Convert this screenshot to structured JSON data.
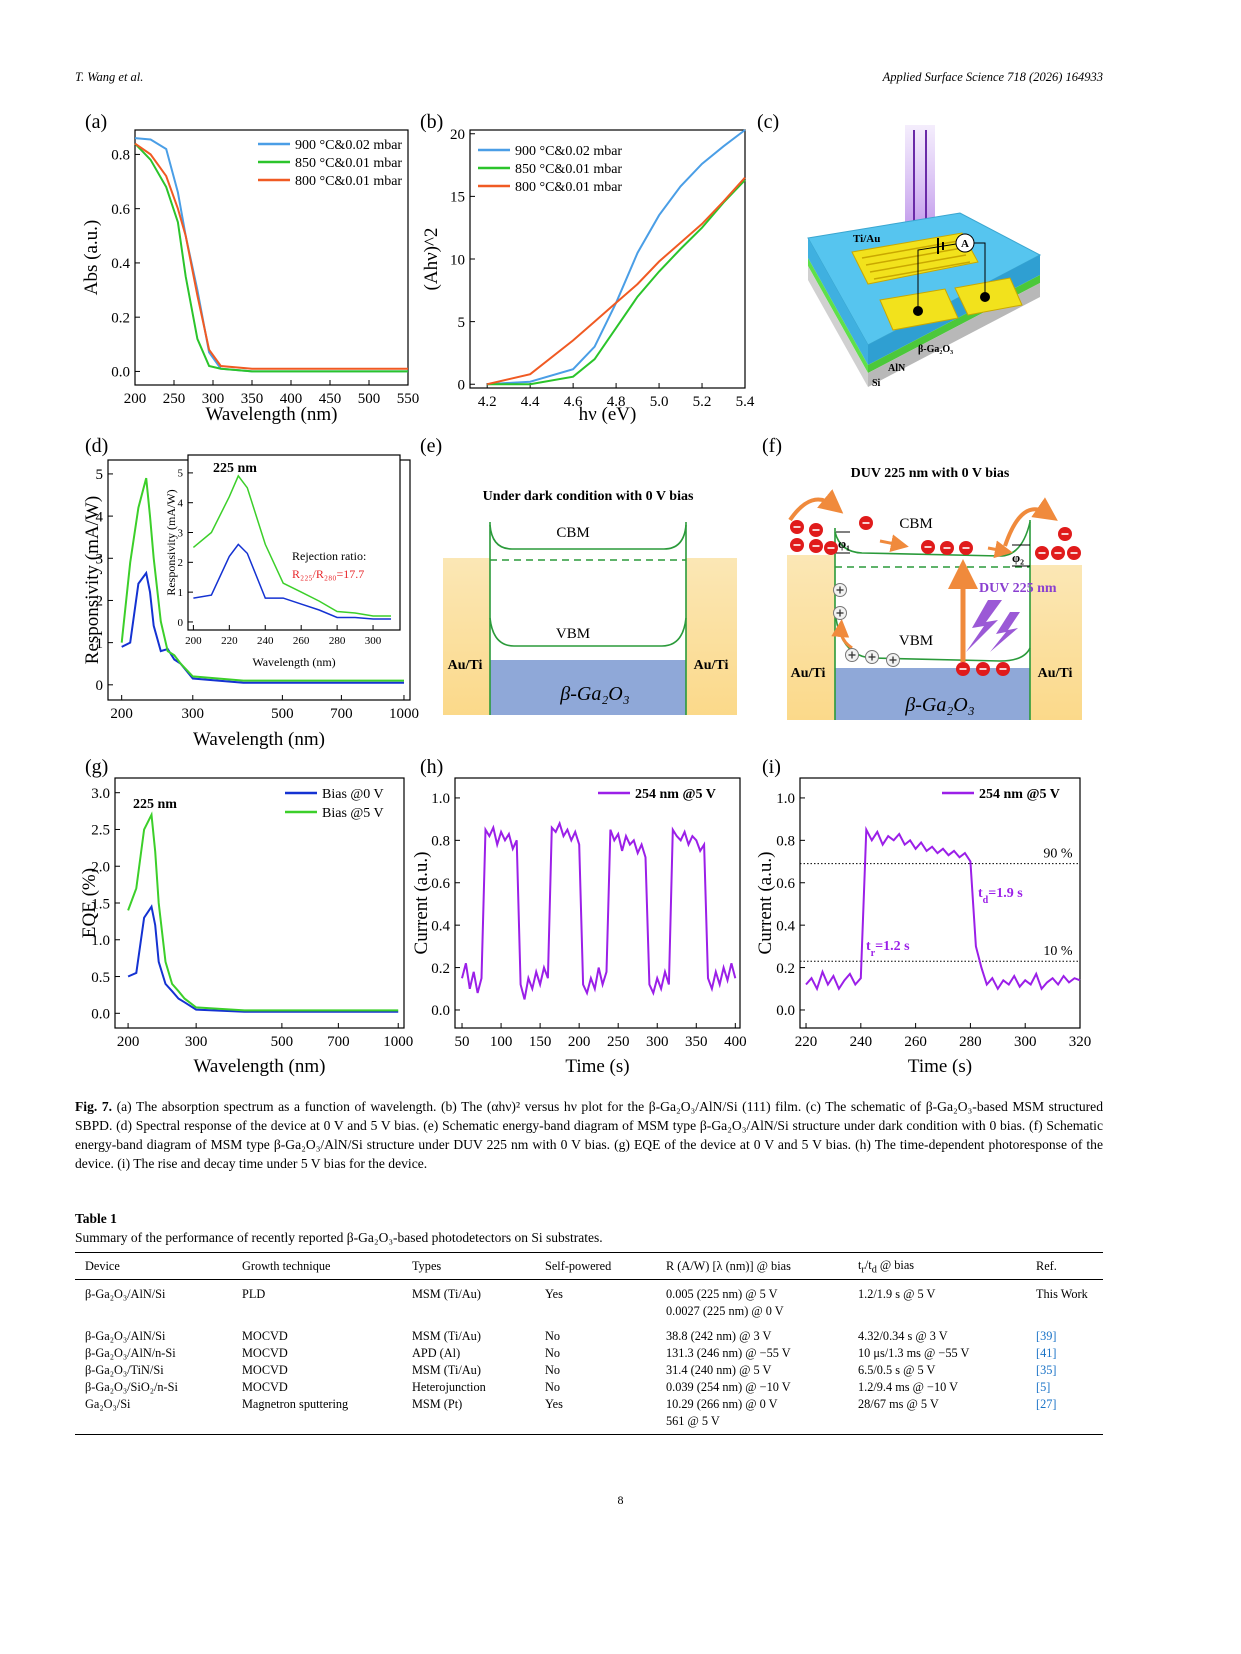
{
  "header": {
    "author": "T. Wang et al.",
    "journal": "Applied Surface Science 718 (2026) 164933"
  },
  "chart_data": [
    {
      "type": "line",
      "label": "(a)",
      "xlabel": "Wavelength (nm)",
      "ylabel": "Abs (a.u.)",
      "x": [
        200,
        220,
        240,
        255,
        265,
        280,
        295,
        310,
        350,
        550
      ],
      "series": [
        {
          "name": "900 °C&0.02 mbar",
          "color": "#4a9ee6",
          "values": [
            0.86,
            0.855,
            0.82,
            0.66,
            0.5,
            0.3,
            0.07,
            0.01,
            0.0,
            0.0
          ]
        },
        {
          "name": "850 °C&0.01 mbar",
          "color": "#2bc42b",
          "values": [
            0.84,
            0.78,
            0.68,
            0.55,
            0.35,
            0.12,
            0.02,
            0.01,
            0.0,
            0.0
          ]
        },
        {
          "name": "800 °C&0.01 mbar",
          "color": "#f05a23",
          "values": [
            0.84,
            0.8,
            0.72,
            0.6,
            0.5,
            0.28,
            0.08,
            0.02,
            0.01,
            0.01
          ]
        }
      ],
      "xlim": [
        200,
        550
      ],
      "ylim": [
        -0.05,
        0.89
      ],
      "xticks": [
        200,
        250,
        300,
        350,
        400,
        450,
        500,
        550
      ],
      "yticks": [
        {
          "value": 0,
          "label": "0.0"
        },
        0.2,
        0.4,
        0.6,
        0.8
      ]
    },
    {
      "type": "line",
      "label": "(b)",
      "xlabel": "hν (eV)",
      "ylabel": "(Ahν)^2",
      "x": [
        4.2,
        4.4,
        4.6,
        4.7,
        4.8,
        4.9,
        5.0,
        5.1,
        5.2,
        5.3,
        5.4
      ],
      "series": [
        {
          "name": "900 °C&0.02 mbar",
          "color": "#4a9ee6",
          "values": [
            0,
            0.2,
            1.2,
            3,
            6.5,
            10.5,
            13.5,
            15.8,
            17.6,
            19,
            20.3
          ]
        },
        {
          "name": "850 °C&0.01 mbar",
          "color": "#2bc42b",
          "values": [
            0,
            0,
            0.6,
            2,
            4.5,
            7,
            9,
            10.8,
            12.5,
            14.5,
            16.3
          ]
        },
        {
          "name": "800 °C&0.01 mbar",
          "color": "#f05a23",
          "values": [
            0,
            0.8,
            3.5,
            5,
            6.5,
            8,
            9.8,
            11.3,
            12.8,
            14.6,
            16.5
          ]
        }
      ],
      "xlim": [
        4.12,
        5.4
      ],
      "ylim": [
        -0.3,
        20.3
      ],
      "xticks": [
        4.2,
        4.4,
        4.6,
        4.8,
        {
          "value": 5,
          "label": "5.0"
        },
        5.2,
        5.4
      ],
      "yticks": [
        0,
        5,
        10,
        15,
        20
      ]
    },
    {
      "type": "line",
      "label": "(d)",
      "xlabel": "Wavelength (nm)",
      "ylabel": "Responsivity (mA/W)",
      "xscale": "log",
      "x": [
        200,
        210,
        220,
        230,
        235,
        240,
        250,
        260,
        270,
        280,
        300,
        400,
        1000
      ],
      "series": [
        {
          "name": "Bias @0 V",
          "color": "#1432d2",
          "values": [
            0.9,
            1,
            2.4,
            2.65,
            2.2,
            1.4,
            0.8,
            0.85,
            0.6,
            0.5,
            0.15,
            0.05,
            0.05
          ]
        },
        {
          "name": "Bias @5 V",
          "color": "#3ccf2a",
          "values": [
            1,
            2.9,
            4.2,
            4.9,
            4,
            3,
            1.5,
            0.8,
            0.7,
            0.5,
            0.2,
            0.1,
            0.1
          ]
        }
      ],
      "xlim": [
        185,
        1035
      ],
      "ylim": [
        -0.36,
        5.33
      ],
      "xticks": [
        200,
        300,
        500,
        700,
        1000
      ],
      "yticks": [
        0,
        1,
        2,
        3,
        4,
        5
      ]
    },
    {
      "type": "line",
      "xlabel": "Wavelength (nm)",
      "ylabel": "Responsivity (mA/W)",
      "x": [
        200,
        210,
        220,
        225,
        230,
        240,
        250,
        260,
        270,
        280,
        290,
        300,
        310
      ],
      "series": [
        {
          "color": "#1432d2",
          "values": [
            0.8,
            0.9,
            2.2,
            2.6,
            2.3,
            0.8,
            0.8,
            0.6,
            0.4,
            0.15,
            0.15,
            0.1,
            0.1
          ]
        },
        {
          "color": "#3ccf2a",
          "values": [
            2.5,
            3,
            4.2,
            4.9,
            4.5,
            2.6,
            1.3,
            1.0,
            0.7,
            0.35,
            0.3,
            0.2,
            0.2
          ]
        }
      ],
      "xlim": [
        197,
        315
      ],
      "ylim": [
        -0.27,
        5.6
      ],
      "xticks": [
        200,
        220,
        240,
        260,
        280,
        300
      ],
      "yticks": [
        0,
        1,
        2,
        3,
        4,
        5
      ],
      "annotations": [
        {
          "text": "225 nm",
          "color": "#000000"
        },
        {
          "text": "Rejection ratio:",
          "color": "#000000"
        },
        {
          "text": "R₂₂₅/R₂₈₀=17.7",
          "color": "#e8262a"
        }
      ]
    },
    {
      "type": "line",
      "label": "(g)",
      "xlabel": "Wavelength (nm)",
      "ylabel": "EQE (%)",
      "xscale": "log",
      "x": [
        200,
        210,
        220,
        230,
        235,
        240,
        250,
        260,
        270,
        280,
        300,
        400,
        1000
      ],
      "series": [
        {
          "name": "Bias @0 V",
          "color": "#1432d2",
          "values": [
            0.5,
            0.55,
            1.3,
            1.45,
            1.2,
            0.7,
            0.4,
            0.3,
            0.2,
            0.15,
            0.05,
            0.02,
            0.02
          ]
        },
        {
          "name": "Bias @5 V",
          "color": "#3ccf2a",
          "values": [
            1.4,
            1.7,
            2.5,
            2.7,
            2.2,
            1.5,
            0.7,
            0.4,
            0.3,
            0.2,
            0.08,
            0.04,
            0.04
          ]
        }
      ],
      "xlim": [
        185,
        1035
      ],
      "ylim": [
        -0.2,
        3.2
      ],
      "xticks": [
        200,
        300,
        500,
        700,
        1000
      ],
      "yticks": [
        {
          "value": 0,
          "label": "0.0"
        },
        0.5,
        {
          "value": 1,
          "label": "1.0"
        },
        1.5,
        {
          "value": 2,
          "label": "2.0"
        },
        2.5,
        {
          "value": 3,
          "label": "3.0"
        }
      ],
      "annotations": [
        {
          "text": "225 nm",
          "color": "#000000"
        }
      ]
    },
    {
      "type": "line",
      "label": "(h)",
      "xlabel": "Time (s)",
      "ylabel": "Current (a.u.)",
      "x": [
        50,
        55,
        60,
        65,
        70,
        75,
        80,
        85,
        90,
        95,
        100,
        105,
        110,
        115,
        120,
        125,
        130,
        135,
        140,
        145,
        150,
        155,
        160,
        165,
        170,
        175,
        180,
        185,
        190,
        195,
        200,
        205,
        210,
        215,
        220,
        225,
        230,
        235,
        240,
        245,
        250,
        255,
        260,
        265,
        270,
        275,
        280,
        285,
        290,
        295,
        300,
        305,
        310,
        315,
        320,
        325,
        330,
        335,
        340,
        345,
        350,
        355,
        360,
        365,
        370,
        375,
        380,
        385,
        390,
        395,
        400
      ],
      "series": [
        {
          "name": "254 nm  @5 V",
          "color": "#9b1fe8",
          "values": [
            0.15,
            0.22,
            0.1,
            0.18,
            0.08,
            0.15,
            0.85,
            0.82,
            0.86,
            0.78,
            0.84,
            0.8,
            0.83,
            0.76,
            0.8,
            0.12,
            0.05,
            0.15,
            0.1,
            0.18,
            0.12,
            0.2,
            0.15,
            0.86,
            0.84,
            0.88,
            0.82,
            0.85,
            0.8,
            0.84,
            0.78,
            0.12,
            0.08,
            0.15,
            0.1,
            0.2,
            0.12,
            0.18,
            0.85,
            0.8,
            0.83,
            0.75,
            0.82,
            0.78,
            0.8,
            0.74,
            0.78,
            0.72,
            0.12,
            0.08,
            0.15,
            0.1,
            0.18,
            0.12,
            0.85,
            0.82,
            0.8,
            0.84,
            0.78,
            0.82,
            0.8,
            0.75,
            0.78,
            0.15,
            0.1,
            0.18,
            0.12,
            0.2,
            0.14,
            0.22,
            0.15
          ]
        }
      ],
      "xlim": [
        41,
        406
      ],
      "ylim": [
        -0.085,
        1.094
      ],
      "xticks": [
        50,
        100,
        150,
        200,
        250,
        300,
        350,
        400
      ],
      "yticks": [
        {
          "value": 0,
          "label": "0.0"
        },
        0.2,
        0.4,
        0.6,
        0.8,
        {
          "value": 1,
          "label": "1.0"
        }
      ]
    },
    {
      "type": "line",
      "label": "(i)",
      "xlabel": "Time (s)",
      "ylabel": "Current (a.u.)",
      "x": [
        220,
        222,
        224,
        226,
        228,
        230,
        232,
        234,
        236,
        238,
        240,
        242,
        244,
        246,
        248,
        250,
        252,
        254,
        256,
        258,
        260,
        262,
        264,
        266,
        268,
        270,
        272,
        274,
        276,
        278,
        280,
        282,
        284,
        286,
        288,
        290,
        292,
        294,
        296,
        298,
        300,
        302,
        304,
        306,
        308,
        310,
        312,
        314,
        316,
        318,
        320
      ],
      "series": [
        {
          "name": "254 nm  @5 V",
          "color": "#9b1fe8",
          "values": [
            0.12,
            0.15,
            0.1,
            0.18,
            0.12,
            0.16,
            0.1,
            0.14,
            0.17,
            0.12,
            0.15,
            0.85,
            0.8,
            0.84,
            0.78,
            0.82,
            0.8,
            0.83,
            0.78,
            0.8,
            0.76,
            0.79,
            0.75,
            0.77,
            0.74,
            0.76,
            0.73,
            0.75,
            0.72,
            0.74,
            0.7,
            0.3,
            0.2,
            0.12,
            0.15,
            0.1,
            0.14,
            0.12,
            0.16,
            0.11,
            0.14,
            0.12,
            0.17,
            0.1,
            0.13,
            0.15,
            0.12,
            0.16,
            0.13,
            0.15,
            0.14
          ]
        }
      ],
      "xlim": [
        217.8,
        320
      ],
      "ylim": [
        -0.085,
        1.094
      ],
      "xticks": [
        220,
        240,
        260,
        280,
        300,
        320
      ],
      "yticks": [
        {
          "value": 0,
          "label": "0.0"
        },
        0.2,
        0.4,
        0.6,
        0.8,
        {
          "value": 1,
          "label": "1.0"
        }
      ],
      "hlines": [
        {
          "value": 0.69,
          "label": "90 %"
        },
        {
          "value": 0.23,
          "label": "10 %"
        }
      ],
      "annotations": [
        {
          "text": [
            "t",
            {
              "sub": "d"
            },
            "=1.9 s"
          ],
          "color": "#9b1fe8"
        },
        {
          "text": [
            "t",
            {
              "sub": "r"
            },
            "=1.2 s"
          ],
          "color": "#9b1fe8"
        }
      ]
    }
  ],
  "diagrams": {
    "c": {
      "label": "(c)",
      "electrode": "Ti/Au",
      "meter": "A",
      "film": "β-Ga₂O₃",
      "buffer": "AlN",
      "substrate": "Si"
    },
    "e": {
      "label": "(e)",
      "title": "Under dark condition with 0 V bias",
      "cbm": "CBM",
      "vbm": "VBM",
      "left_contact": "Au/Ti",
      "right_contact": "Au/Ti",
      "semiconductor": "β-Ga₂O₃"
    },
    "f": {
      "label": "(f)",
      "title": "DUV 225 nm with 0 V bias",
      "cbm": "CBM",
      "phi1": "φ₁",
      "phi2": "φ₂",
      "light": "DUV 225 nm",
      "vbm": "VBM",
      "left_contact": "Au/Ti",
      "right_contact": "Au/Ti",
      "semiconductor": "β-Ga₂O₃"
    }
  },
  "figure_caption": {
    "label": "Fig. 7.",
    "text": "(a) The absorption spectrum as a function of wavelength. (b) The (αhν)² versus hν plot for the β-Ga₂O₃/AlN/Si (111) film. (c) The schematic of β-Ga₂O₃-based MSM structured SBPD. (d) Spectral response of the device at 0 V and 5 V bias. (e) Schematic energy-band diagram of MSM type β-Ga₂O₃/AlN/Si structure under dark condition with 0 bias. (f) Schematic energy-band diagram of MSM type β-Ga₂O₃/AlN/Si structure under DUV 225 nm with 0 V bias. (g) EQE of the device at 0 V and 5 V bias. (h) The time-dependent photoresponse of the device. (i) The rise and decay time under 5 V bias for the device."
  },
  "table": {
    "title": "Table 1",
    "caption": "Summary of the performance of recently reported β-Ga₂O₃-based photodetectors on Si substrates.",
    "columns": [
      "Device",
      "Growth technique",
      "Types",
      "Self-powered",
      "R (A/W) [λ (nm)] @ bias",
      [
        "t",
        {
          "sub": "r"
        },
        "/t",
        {
          "sub": "d"
        },
        " @ bias"
      ],
      "Ref."
    ],
    "rows": [
      [
        "β-Ga₂O₃/AlN/Si",
        "PLD",
        "MSM (Ti/Au)",
        "Yes",
        "0.005 (225 nm) @ 5 V\n0.0027 (225 nm) @ 0 V",
        "1.2/1.9 s @ 5 V",
        "This Work"
      ],
      [
        "β-Ga₂O₃/AlN/Si",
        "MOCVD",
        "MSM (Ti/Au)",
        "No",
        "38.8 (242 nm) @ 3 V",
        "4.32/0.34 s @ 3 V",
        "[39]"
      ],
      [
        "β-Ga₂O₃/AlN/n-Si",
        "MOCVD",
        "APD (Al)",
        "No",
        "131.3 (246 nm) @ −55 V",
        "10 μs/1.3 ms @ −55 V",
        "[41]"
      ],
      [
        "β-Ga₂O₃/TiN/Si",
        "MOCVD",
        "MSM (Ti/Au)",
        "No",
        "31.4 (240 nm) @ 5 V",
        "6.5/0.5 s @ 5 V",
        "[35]"
      ],
      [
        "β-Ga₂O₃/SiO₂/n-Si",
        "MOCVD",
        "Heterojunction",
        "No",
        "0.039 (254 nm) @ −10 V",
        "1.2/9.4 ms @ −10 V",
        "[5]"
      ],
      [
        "Ga₂O₃/Si",
        "Magnetron sputtering",
        "MSM (Pt)",
        "Yes",
        "10.29 (266 nm) @ 0 V\n561 @ 5 V",
        "28/67 ms @ 5 V",
        "[27]"
      ]
    ]
  },
  "page_number": "8"
}
